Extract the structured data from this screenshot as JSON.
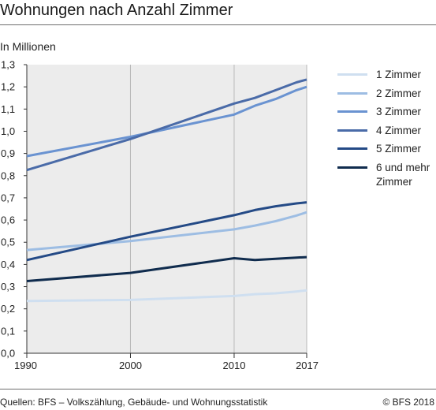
{
  "header": {
    "title": "Wohnungen nach Anzahl Zimmer",
    "subtitle": "In Millionen"
  },
  "footer": {
    "source": "Quellen: BFS – Volkszählung, Gebäude- und Wohnungsstatistik",
    "copyright": "© BFS 2018"
  },
  "colors": {
    "plot_background": "#ececec",
    "grid": "#ffffff",
    "axis": "#333333"
  },
  "chart_data": {
    "type": "line",
    "title": "Wohnungen nach Anzahl Zimmer",
    "ylabel": "In Millionen",
    "xlabel": "",
    "xlim": [
      1990,
      2017
    ],
    "ylim": [
      0,
      1.3
    ],
    "x_ticks": [
      1990,
      2000,
      2010,
      2017
    ],
    "y_ticks": [
      0,
      0.1,
      0.2,
      0.3,
      0.4,
      0.5,
      0.6,
      0.7,
      0.8,
      0.9,
      1.0,
      1.1,
      1.2,
      1.3
    ],
    "y_tick_labels": [
      "0,0",
      "0,1",
      "0,2",
      "0,3",
      "0,4",
      "0,5",
      "0,6",
      "0,7",
      "0,8",
      "0,9",
      "1,0",
      "1,1",
      "1,2",
      "1,3"
    ],
    "grid": "vertical at 1990, 2000, 2010, 2017",
    "legend_position": "right",
    "x": [
      1990,
      2000,
      2010,
      2012,
      2014,
      2016,
      2017
    ],
    "series": [
      {
        "name": "1 Zimmer",
        "color": "#cfdff0",
        "values": [
          0.235,
          0.24,
          0.258,
          0.266,
          0.27,
          0.278,
          0.283
        ]
      },
      {
        "name": "2 Zimmer",
        "color": "#9dbde3",
        "values": [
          0.465,
          0.505,
          0.558,
          0.575,
          0.595,
          0.62,
          0.635
        ]
      },
      {
        "name": "3 Zimmer",
        "color": "#6a93d1",
        "values": [
          0.888,
          0.975,
          1.075,
          1.115,
          1.145,
          1.185,
          1.2
        ]
      },
      {
        "name": "4 Zimmer",
        "color": "#4a6ba8",
        "values": [
          0.825,
          0.965,
          1.125,
          1.15,
          1.185,
          1.22,
          1.233
        ]
      },
      {
        "name": "5 Zimmer",
        "color": "#244a86",
        "values": [
          0.42,
          0.525,
          0.622,
          0.645,
          0.662,
          0.675,
          0.68
        ]
      },
      {
        "name": "6 und mehr Zimmer",
        "color": "#102c4e",
        "values": [
          0.325,
          0.362,
          0.428,
          0.42,
          0.425,
          0.431,
          0.433
        ]
      }
    ]
  }
}
